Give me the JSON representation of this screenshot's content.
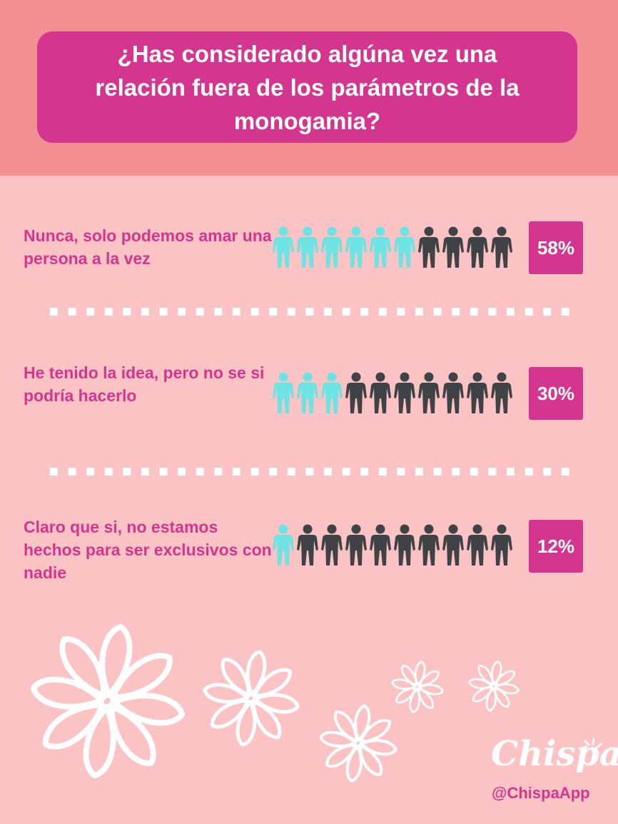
{
  "title": "¿Has considerado algúna vez una relación fuera de los parámetros de la monogamia?",
  "chart_data": {
    "type": "pictograph",
    "title": "¿Has considerado algúna vez una relación fuera de los parámetros de la monogamia?",
    "unit": "%",
    "icons_per_row": 10,
    "categories": [
      "Nunca, solo podemos amar una persona a la vez",
      "He tenido la idea, pero no se si podría hacerlo",
      "Claro que si, no estamos hechos para ser exclusivos con nadie"
    ],
    "values": [
      58,
      30,
      12
    ],
    "value_labels": [
      "58%",
      "30%",
      "12%"
    ],
    "highlighted_icons": [
      6,
      3,
      1
    ]
  },
  "colors": {
    "header_band": "#f28f92",
    "background": "#fbc3c3",
    "accent": "#d4358e",
    "icon_highlight": "#6ee3e3",
    "icon_dark": "#3f4346",
    "text_light": "#ffffff"
  },
  "branding": {
    "logo": "Chispa",
    "handle": "@ChispaApp"
  },
  "decorations": {
    "icons": [
      "flower-icon",
      "sparkle-icon",
      "person-icon"
    ]
  }
}
